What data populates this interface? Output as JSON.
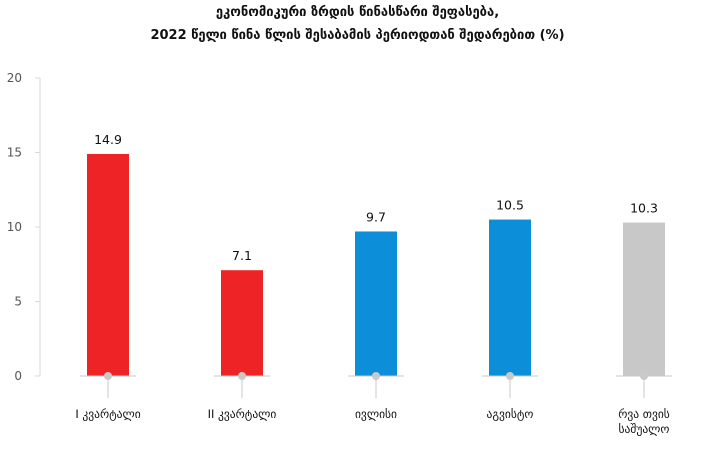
{
  "chart_data": {
    "type": "bar",
    "title_lines": [
      "ეკონომიკური ზრდის წინასწარი შეფასება,",
      "2022 წელი წინა წლის შესაბამის პერიოდთან შედარებით (%)"
    ],
    "categories": [
      [
        "I კვარტალი"
      ],
      [
        "II კვარტალი"
      ],
      [
        "ივლისი"
      ],
      [
        "აგვისტო"
      ],
      [
        "რვა თვის",
        "საშუალო"
      ]
    ],
    "values": [
      14.9,
      7.1,
      9.7,
      10.5,
      10.3
    ],
    "value_labels": [
      "14.9",
      "7.1",
      "9.7",
      "10.5",
      "10.3"
    ],
    "bar_colors": [
      "#ee2326",
      "#ee2326",
      "#0c8fd8",
      "#0c8fd8",
      "#c8c8c8"
    ],
    "ylim": [
      0,
      20
    ],
    "yticks": [
      0,
      5,
      10,
      15,
      20
    ],
    "grid": false
  }
}
